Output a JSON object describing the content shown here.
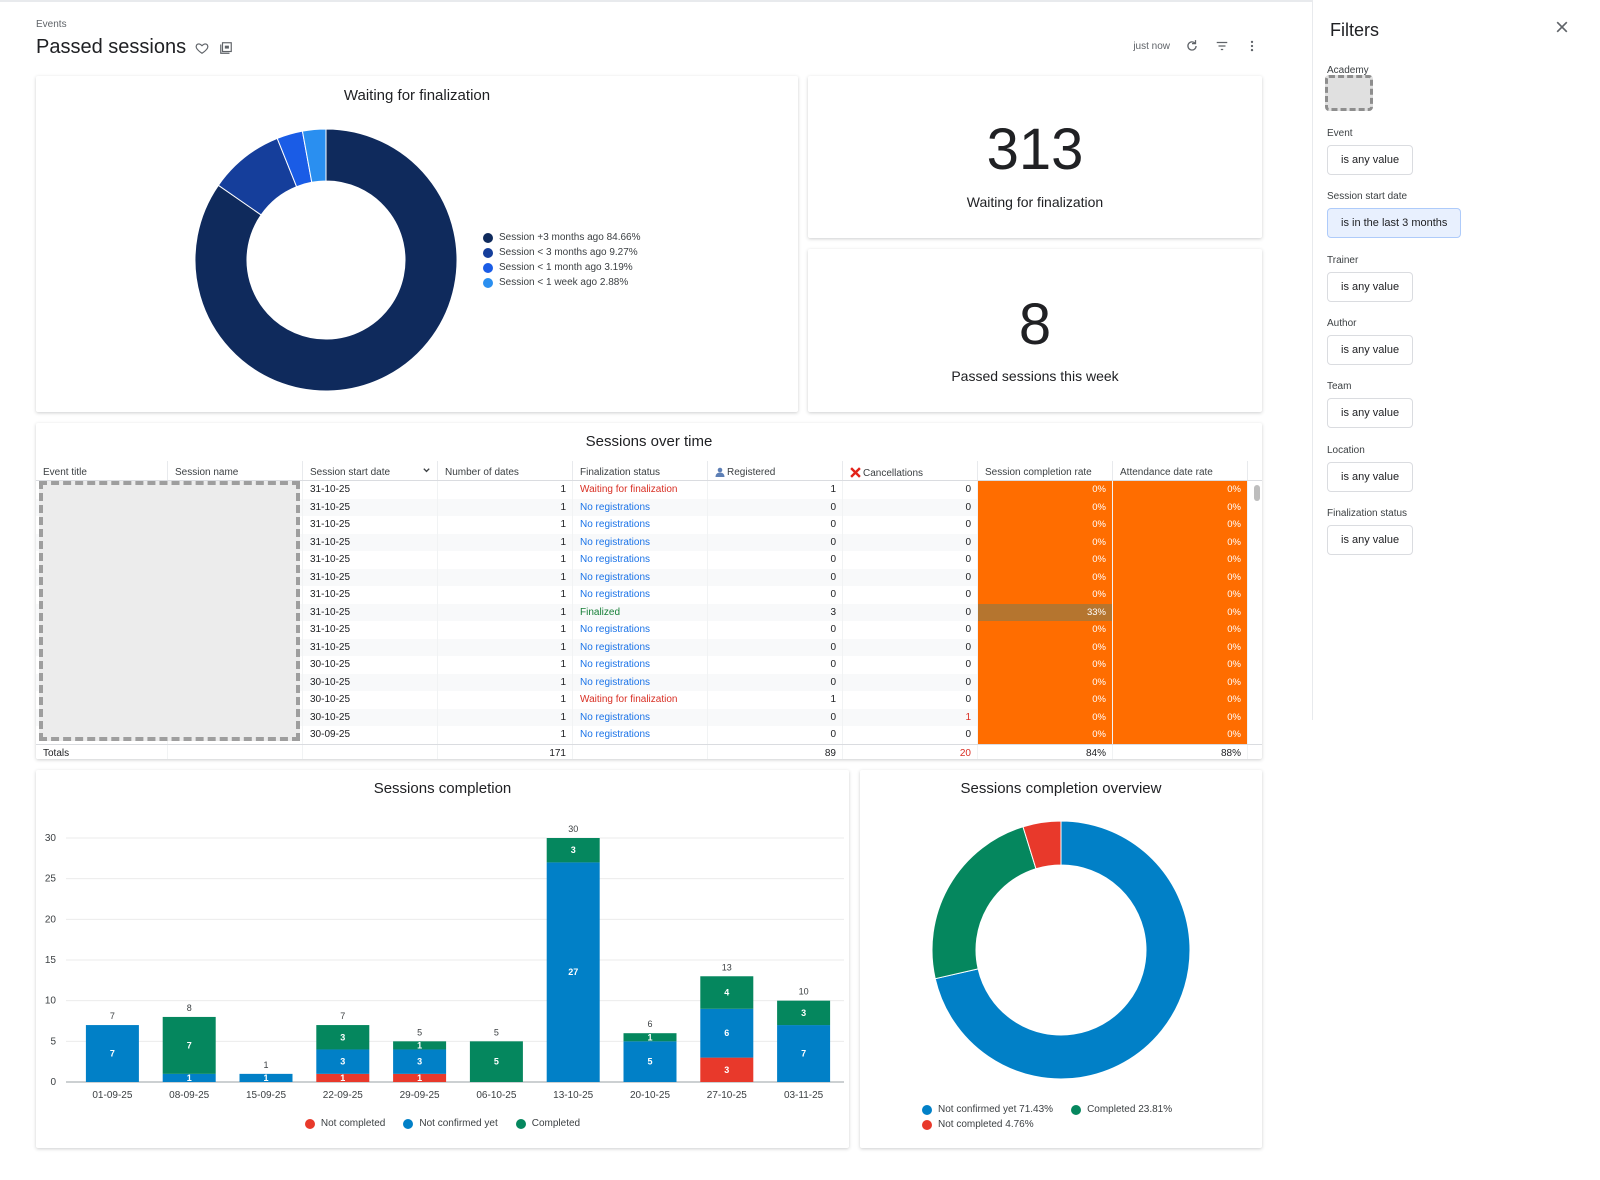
{
  "page": {
    "breadcrumb": "Events",
    "title": "Passed sessions",
    "refresh_status": "just now"
  },
  "colors": {
    "navy": "#0f2a5c",
    "blue_dark": "#153e9b",
    "blue_mid": "#1a5ce6",
    "blue_light": "#2a8ff0",
    "teal_blue": "#0180c7",
    "green": "#05875e",
    "red": "#e8392b",
    "orange": "#ff6d00",
    "brown": "#b5752f"
  },
  "waiting_card": {
    "title": "Waiting for finalization",
    "legend": [
      {
        "label": "Session +3 months ago 84.66%",
        "color": "#0f2a5c"
      },
      {
        "label": "Session < 3 months ago 9.27%",
        "color": "#153e9b"
      },
      {
        "label": "Session < 1 month ago 3.19%",
        "color": "#1a5ce6"
      },
      {
        "label": "Session < 1 week ago 2.88%",
        "color": "#2a8ff0"
      }
    ]
  },
  "kpi_waiting": {
    "value": "313",
    "label": "Waiting for finalization"
  },
  "kpi_week": {
    "value": "8",
    "label": "Passed sessions this week"
  },
  "sessions_table": {
    "title": "Sessions over time",
    "columns": [
      "Event title",
      "Session name",
      "Session start date",
      "Number of dates",
      "Finalization status",
      "Registered",
      "Cancellations",
      "Session completion rate",
      "Attendance date rate"
    ],
    "rows": [
      {
        "date": "31-10-25",
        "dates": "1",
        "status": "Waiting for finalization",
        "status_type": "wait",
        "registered": "1",
        "cancellations": "0",
        "completion": "0%",
        "attendance": "0%"
      },
      {
        "date": "31-10-25",
        "dates": "1",
        "status": "No registrations",
        "status_type": "none",
        "registered": "0",
        "cancellations": "0",
        "completion": "0%",
        "attendance": "0%"
      },
      {
        "date": "31-10-25",
        "dates": "1",
        "status": "No registrations",
        "status_type": "none",
        "registered": "0",
        "cancellations": "0",
        "completion": "0%",
        "attendance": "0%"
      },
      {
        "date": "31-10-25",
        "dates": "1",
        "status": "No registrations",
        "status_type": "none",
        "registered": "0",
        "cancellations": "0",
        "completion": "0%",
        "attendance": "0%"
      },
      {
        "date": "31-10-25",
        "dates": "1",
        "status": "No registrations",
        "status_type": "none",
        "registered": "0",
        "cancellations": "0",
        "completion": "0%",
        "attendance": "0%"
      },
      {
        "date": "31-10-25",
        "dates": "1",
        "status": "No registrations",
        "status_type": "none",
        "registered": "0",
        "cancellations": "0",
        "completion": "0%",
        "attendance": "0%"
      },
      {
        "date": "31-10-25",
        "dates": "1",
        "status": "No registrations",
        "status_type": "none",
        "registered": "0",
        "cancellations": "0",
        "completion": "0%",
        "attendance": "0%"
      },
      {
        "date": "31-10-25",
        "dates": "1",
        "status": "Finalized",
        "status_type": "fin",
        "registered": "3",
        "cancellations": "0",
        "completion": "33%",
        "attendance": "0%"
      },
      {
        "date": "31-10-25",
        "dates": "1",
        "status": "No registrations",
        "status_type": "none",
        "registered": "0",
        "cancellations": "0",
        "completion": "0%",
        "attendance": "0%"
      },
      {
        "date": "31-10-25",
        "dates": "1",
        "status": "No registrations",
        "status_type": "none",
        "registered": "0",
        "cancellations": "0",
        "completion": "0%",
        "attendance": "0%"
      },
      {
        "date": "30-10-25",
        "dates": "1",
        "status": "No registrations",
        "status_type": "none",
        "registered": "0",
        "cancellations": "0",
        "completion": "0%",
        "attendance": "0%"
      },
      {
        "date": "30-10-25",
        "dates": "1",
        "status": "No registrations",
        "status_type": "none",
        "registered": "0",
        "cancellations": "0",
        "completion": "0%",
        "attendance": "0%"
      },
      {
        "date": "30-10-25",
        "dates": "1",
        "status": "Waiting for finalization",
        "status_type": "wait",
        "registered": "1",
        "cancellations": "0",
        "completion": "0%",
        "attendance": "0%"
      },
      {
        "date": "30-10-25",
        "dates": "1",
        "status": "No registrations",
        "status_type": "none",
        "registered": "0",
        "cancellations": "1",
        "completion": "0%",
        "attendance": "0%"
      },
      {
        "date": "30-09-25",
        "dates": "1",
        "status": "No registrations",
        "status_type": "none",
        "registered": "0",
        "cancellations": "0",
        "completion": "0%",
        "attendance": "0%"
      }
    ],
    "totals": {
      "label": "Totals",
      "dates": "171",
      "registered": "89",
      "cancellations": "20",
      "completion": "84%",
      "attendance": "88%"
    }
  },
  "completion_chart": {
    "title": "Sessions completion",
    "legend": [
      "Not completed",
      "Not confirmed yet",
      "Completed"
    ]
  },
  "overview_chart": {
    "title": "Sessions completion overview",
    "legend": [
      "Not confirmed yet 71.43%",
      "Completed 23.81%",
      "Not completed 4.76%"
    ]
  },
  "chart_data": [
    {
      "type": "pie",
      "title": "Waiting for finalization",
      "labels": [
        "Session +3 months ago",
        "Session < 3 months ago",
        "Session < 1 month ago",
        "Session < 1 week ago"
      ],
      "values": [
        84.66,
        9.27,
        3.19,
        2.88
      ],
      "legend_position": "right"
    },
    {
      "type": "bar",
      "title": "Sessions completion",
      "stacked": true,
      "categories": [
        "01-09-25",
        "08-09-25",
        "15-09-25",
        "22-09-25",
        "29-09-25",
        "06-10-25",
        "13-10-25",
        "20-10-25",
        "27-10-25",
        "03-11-25"
      ],
      "series": [
        {
          "name": "Not completed",
          "values": [
            0,
            0,
            0,
            1,
            1,
            0,
            0,
            0,
            3,
            0
          ]
        },
        {
          "name": "Not confirmed yet",
          "values": [
            7,
            1,
            1,
            3,
            3,
            0,
            27,
            5,
            6,
            7
          ]
        },
        {
          "name": "Completed",
          "values": [
            0,
            7,
            0,
            3,
            1,
            5,
            3,
            1,
            4,
            3
          ]
        }
      ],
      "totals": [
        7,
        8,
        1,
        7,
        5,
        5,
        30,
        6,
        13,
        10
      ],
      "ylim": [
        0,
        30
      ],
      "yticks": [
        0,
        5,
        10,
        15,
        20,
        25,
        30
      ],
      "grid": true,
      "legend_position": "bottom"
    },
    {
      "type": "pie",
      "title": "Sessions completion overview",
      "labels": [
        "Not confirmed yet",
        "Completed",
        "Not completed"
      ],
      "values": [
        71.43,
        23.81,
        4.76
      ],
      "legend_position": "bottom"
    }
  ],
  "filters": {
    "title": "Filters",
    "academy_label": "Academy",
    "items": [
      {
        "label": "Event",
        "value": "is any value",
        "active": false
      },
      {
        "label": "Session start date",
        "value": "is in the last 3 months",
        "active": true
      },
      {
        "label": "Trainer",
        "value": "is any value",
        "active": false
      },
      {
        "label": "Author",
        "value": "is any value",
        "active": false
      },
      {
        "label": "Team",
        "value": "is any value",
        "active": false
      },
      {
        "label": "Location",
        "value": "is any value",
        "active": false
      },
      {
        "label": "Finalization status",
        "value": "is any value",
        "active": false
      }
    ]
  }
}
